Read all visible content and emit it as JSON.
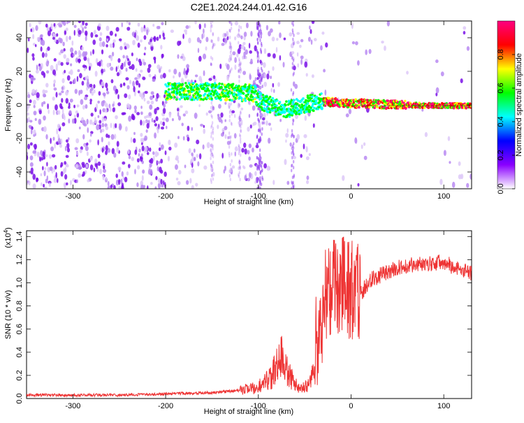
{
  "chart_data": [
    {
      "type": "heatmap",
      "title": "C2E1.2024.244.01.42.G16",
      "xlabel": "Height of straight line (km)",
      "ylabel": "Frequency (Hz)",
      "xlim": [
        -350,
        130
      ],
      "ylim": [
        -50,
        50
      ],
      "xticks": [
        "-300",
        "-200",
        "-100",
        "0",
        "100"
      ],
      "yticks": [
        "-40",
        "-20",
        "0",
        "20",
        "40"
      ],
      "colorbar": {
        "label": "Normalized spectral amplitude",
        "range": [
          0.0,
          1.0
        ],
        "ticks": [
          "0.0",
          "0.2",
          "0.4",
          "0.6",
          "0.8"
        ],
        "colors": [
          "#ffffff",
          "#8a00ff",
          "#0000ff",
          "#00ffff",
          "#00ff00",
          "#ffff00",
          "#ff0000",
          "#ff0080"
        ]
      },
      "ridge": [
        {
          "x": -200,
          "y": 8
        },
        {
          "x": -150,
          "y": 8
        },
        {
          "x": -105,
          "y": 7
        },
        {
          "x": -95,
          "y": 1
        },
        {
          "x": -70,
          "y": -3
        },
        {
          "x": -50,
          "y": 0
        },
        {
          "x": -35,
          "y": 2
        },
        {
          "x": 0,
          "y": 1
        },
        {
          "x": 50,
          "y": 0
        },
        {
          "x": 100,
          "y": -0.5
        },
        {
          "x": 130,
          "y": -0.5
        }
      ]
    },
    {
      "type": "line",
      "xlabel": "Height of straight line (km)",
      "ylabel": "SNR (10 * v/v)",
      "yscale_label": "(x10",
      "yscale_exp": "4",
      "xlim": [
        -350,
        130
      ],
      "ylim": [
        0,
        1.45
      ],
      "xticks": [
        "-300",
        "-200",
        "-100",
        "0",
        "100"
      ],
      "yticks": [
        "0.0",
        "0.2",
        "0.4",
        "0.6",
        "0.8",
        "1.0",
        "1.2",
        "1.4"
      ],
      "color": "#ee3333",
      "envelope": [
        {
          "x": -350,
          "y": 0.03
        },
        {
          "x": -250,
          "y": 0.03
        },
        {
          "x": -200,
          "y": 0.04
        },
        {
          "x": -150,
          "y": 0.05
        },
        {
          "x": -120,
          "y": 0.07
        },
        {
          "x": -100,
          "y": 0.1
        },
        {
          "x": -85,
          "y": 0.2
        },
        {
          "x": -75,
          "y": 0.35
        },
        {
          "x": -65,
          "y": 0.18
        },
        {
          "x": -55,
          "y": 0.08
        },
        {
          "x": -45,
          "y": 0.12
        },
        {
          "x": -35,
          "y": 0.55
        },
        {
          "x": -28,
          "y": 0.9
        },
        {
          "x": -20,
          "y": 0.95
        },
        {
          "x": -10,
          "y": 1.0
        },
        {
          "x": 0,
          "y": 0.95
        },
        {
          "x": 10,
          "y": 0.9
        },
        {
          "x": 20,
          "y": 1.02
        },
        {
          "x": 40,
          "y": 1.1
        },
        {
          "x": 60,
          "y": 1.15
        },
        {
          "x": 80,
          "y": 1.16
        },
        {
          "x": 100,
          "y": 1.18
        },
        {
          "x": 115,
          "y": 1.12
        },
        {
          "x": 130,
          "y": 1.08
        }
      ]
    }
  ]
}
